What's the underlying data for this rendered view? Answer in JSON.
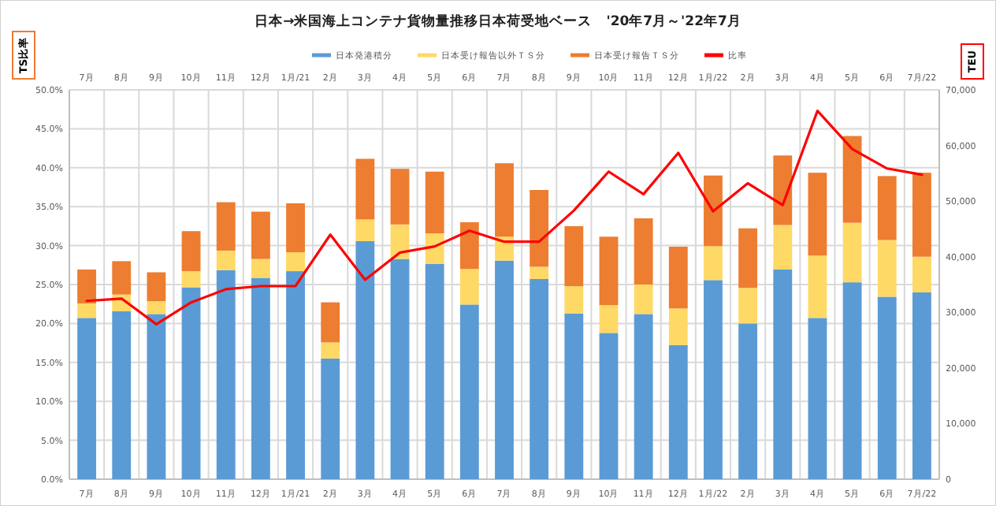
{
  "chart_data": {
    "type": "bar",
    "stacked": true,
    "title": "日本→米国海上コンテナ貨物量推移日本荷受地ベース　'20年7月～'22年7月",
    "ylabel": "TS比率",
    "y2label": "TEU",
    "categories": [
      "7月",
      "8月",
      "9月",
      "10月",
      "11月",
      "12月",
      "1月/21",
      "2月",
      "3月",
      "4月",
      "5月",
      "6月",
      "7月",
      "8月",
      "9月",
      "10月",
      "11月",
      "12月",
      "1月/22",
      "2月",
      "3月",
      "4月",
      "5月",
      "6月",
      "7月/22"
    ],
    "series": [
      {
        "name": "日本発港積分",
        "color": "#5b9bd5",
        "axis": "y2",
        "values": [
          29000,
          30200,
          29700,
          34500,
          37600,
          36200,
          37400,
          21700,
          42800,
          39600,
          38700,
          31400,
          39300,
          36000,
          29800,
          26300,
          29700,
          24100,
          35800,
          28000,
          37700,
          29000,
          35400,
          32800,
          33600
        ]
      },
      {
        "name": "日本受け報告以外ＴＳ分",
        "color": "#ffd966",
        "axis": "y2",
        "values": [
          2600,
          3000,
          2300,
          2900,
          3500,
          3400,
          3400,
          2900,
          3900,
          6200,
          5500,
          6400,
          4300,
          2200,
          4900,
          5000,
          5300,
          6600,
          6100,
          6400,
          8000,
          11200,
          10700,
          10200,
          6400
        ]
      },
      {
        "name": "日本受け報告ＴＳ分",
        "color": "#ed7d31",
        "axis": "y2",
        "values": [
          6100,
          6000,
          5200,
          7200,
          8700,
          8500,
          8800,
          7200,
          10900,
          10000,
          11100,
          8400,
          13200,
          13800,
          10800,
          12300,
          11900,
          11100,
          12700,
          10700,
          12500,
          14900,
          15600,
          11500,
          15100
        ]
      },
      {
        "name": "比率",
        "type": "line",
        "color": "#ff0000",
        "axis": "y",
        "values": [
          22.9,
          23.2,
          19.9,
          22.7,
          24.4,
          24.8,
          24.8,
          31.4,
          25.6,
          29.1,
          29.9,
          31.9,
          30.5,
          30.5,
          34.5,
          39.5,
          36.6,
          41.9,
          34.4,
          38.0,
          35.2,
          47.3,
          42.4,
          39.9,
          39.1
        ]
      }
    ],
    "ylim": [
      0,
      50
    ],
    "yticks": [
      {
        "value": 0,
        "label": "0.0%"
      },
      {
        "value": 5,
        "label": "5.0%"
      },
      {
        "value": 10,
        "label": "10.0%"
      },
      {
        "value": 15,
        "label": "15.0%"
      },
      {
        "value": 20,
        "label": "20.0%"
      },
      {
        "value": 25,
        "label": "25.0%"
      },
      {
        "value": 30,
        "label": "30.0%"
      },
      {
        "value": 35,
        "label": "35.0%"
      },
      {
        "value": 40,
        "label": "40.0%"
      },
      {
        "value": 45,
        "label": "45.0%"
      },
      {
        "value": 50,
        "label": "50.0%"
      }
    ],
    "y2lim": [
      0,
      70000
    ],
    "y2ticks": [
      0,
      {
        "value": 10000,
        "label": "10,000"
      },
      {
        "value": 20000,
        "label": "20,000"
      },
      {
        "value": 30000,
        "label": "30,000"
      },
      {
        "value": 40000,
        "label": "40,000"
      },
      {
        "value": 50000,
        "label": "50,000"
      },
      {
        "value": 60000,
        "label": "60,000"
      },
      {
        "value": 70000,
        "label": "70,000"
      }
    ],
    "grid": true,
    "legend": "top",
    "marker": "none",
    "line_style": "solid"
  }
}
